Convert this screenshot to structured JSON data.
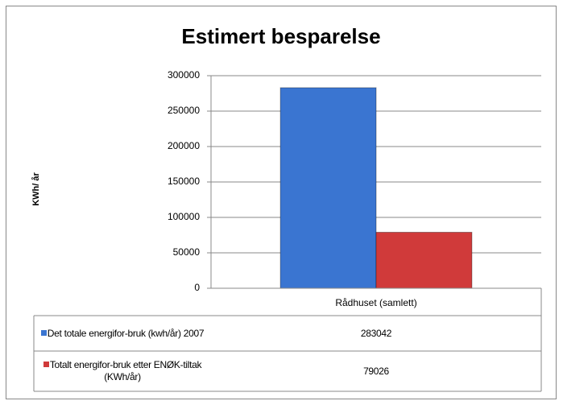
{
  "chart_data": {
    "type": "bar",
    "title": "Estimert besparelse",
    "y_label": "KWh/ år",
    "categories": [
      "Rådhuset (samlett)"
    ],
    "series": [
      {
        "name": "Det totale energifor-bruk (kwh/år) 2007",
        "color": "#3a75d1",
        "values": [
          283042
        ]
      },
      {
        "name": "Totalt energifor-bruk etter ENØK-tiltak    (KWh/år)",
        "color": "#d03a3a",
        "values": [
          79026
        ]
      }
    ],
    "ylim": [
      0,
      300000
    ],
    "yticks": [
      0,
      50000,
      100000,
      150000,
      200000,
      250000,
      300000
    ],
    "grid": true,
    "data_table": true
  }
}
